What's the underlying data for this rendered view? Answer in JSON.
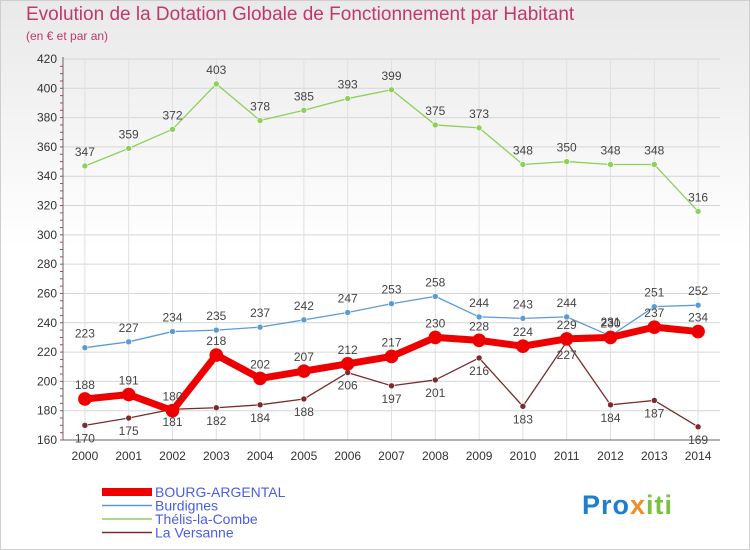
{
  "title": "Evolution de la Dotation Globale de Fonctionnement par Habitant",
  "subtitle": "(en € et par an)",
  "brand": {
    "part1": "Pro",
    "part2": "x",
    "part3": "iti"
  },
  "colors": {
    "title": "#c0386e",
    "BOURG-ARGENTAL": "#ee0000",
    "Burdignes": "#5b9bd5",
    "Thélis-la-Combe": "#8dd05a",
    "La Versanne": "#7a2b2b",
    "legend_text": "#4a5de8"
  },
  "chart_data": {
    "type": "line",
    "title": "Evolution de la Dotation Globale de Fonctionnement par Habitant",
    "subtitle": "(en € et par an)",
    "xlabel": "",
    "ylabel": "",
    "x": [
      "2000",
      "2001",
      "2002",
      "2003",
      "2004",
      "2005",
      "2006",
      "2007",
      "2008",
      "2009",
      "2010",
      "2011",
      "2012",
      "2013",
      "2014"
    ],
    "ylim": [
      160,
      420
    ],
    "yticks": [
      "160",
      "180",
      "200",
      "220",
      "240",
      "260",
      "280",
      "300",
      "320",
      "340",
      "360",
      "380",
      "400",
      "420"
    ],
    "grid": true,
    "legend_position": "bottom-left",
    "series": [
      {
        "name": "BOURG-ARGENTAL",
        "values": [
          188,
          191,
          180,
          218,
          202,
          207,
          212,
          217,
          230,
          228,
          224,
          229,
          230,
          237,
          234
        ]
      },
      {
        "name": "Burdignes",
        "values": [
          223,
          227,
          234,
          235,
          237,
          242,
          247,
          253,
          258,
          244,
          243,
          244,
          231,
          251,
          252
        ]
      },
      {
        "name": "Thélis-la-Combe",
        "values": [
          347,
          359,
          372,
          403,
          378,
          385,
          393,
          399,
          375,
          373,
          348,
          350,
          348,
          348,
          316
        ]
      },
      {
        "name": "La Versanne",
        "values": [
          170,
          175,
          181,
          182,
          184,
          188,
          206,
          197,
          201,
          216,
          183,
          227,
          184,
          187,
          169
        ]
      }
    ]
  }
}
